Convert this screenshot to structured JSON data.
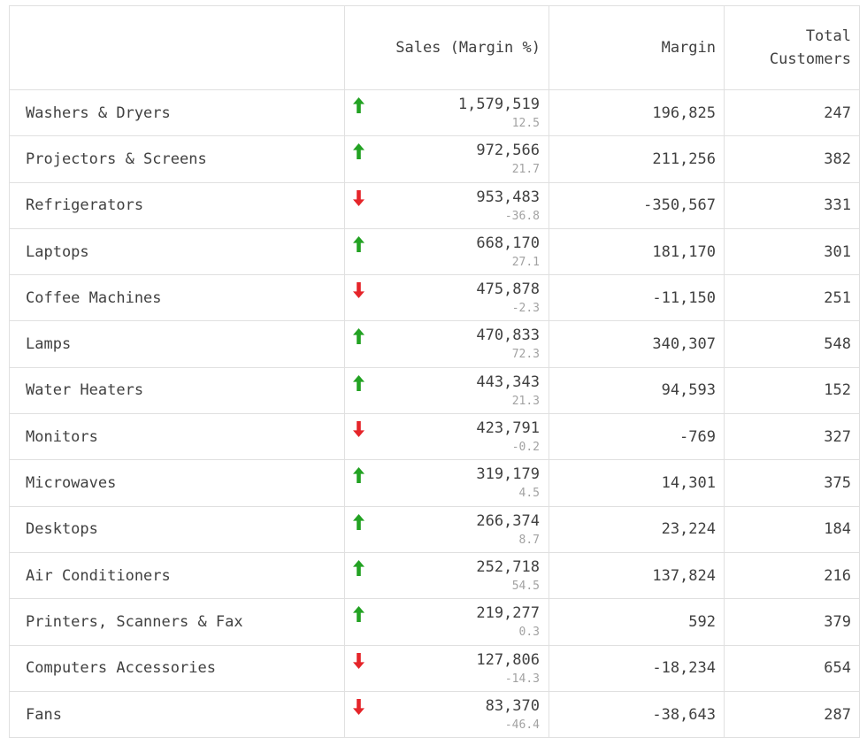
{
  "colors": {
    "trend_up": "#23a223",
    "trend_down": "#e5252a",
    "text": "#404040",
    "muted_text": "#a2a2a2",
    "border": "#e0e0e0"
  },
  "chart_data": {
    "type": "table",
    "columns": [
      "",
      "Sales (Margin %)",
      "Margin",
      "Total Customers"
    ],
    "rows": [
      {
        "category": "Washers & Dryers",
        "trend": "up",
        "sales": "1,579,519",
        "margin_pct": "12.5",
        "margin": "196,825",
        "total_customers": "247"
      },
      {
        "category": "Projectors & Screens",
        "trend": "up",
        "sales": "972,566",
        "margin_pct": "21.7",
        "margin": "211,256",
        "total_customers": "382"
      },
      {
        "category": "Refrigerators",
        "trend": "down",
        "sales": "953,483",
        "margin_pct": "-36.8",
        "margin": "-350,567",
        "total_customers": "331"
      },
      {
        "category": "Laptops",
        "trend": "up",
        "sales": "668,170",
        "margin_pct": "27.1",
        "margin": "181,170",
        "total_customers": "301"
      },
      {
        "category": "Coffee Machines",
        "trend": "down",
        "sales": "475,878",
        "margin_pct": "-2.3",
        "margin": "-11,150",
        "total_customers": "251"
      },
      {
        "category": "Lamps",
        "trend": "up",
        "sales": "470,833",
        "margin_pct": "72.3",
        "margin": "340,307",
        "total_customers": "548"
      },
      {
        "category": "Water Heaters",
        "trend": "up",
        "sales": "443,343",
        "margin_pct": "21.3",
        "margin": "94,593",
        "total_customers": "152"
      },
      {
        "category": "Monitors",
        "trend": "down",
        "sales": "423,791",
        "margin_pct": "-0.2",
        "margin": "-769",
        "total_customers": "327"
      },
      {
        "category": "Microwaves",
        "trend": "up",
        "sales": "319,179",
        "margin_pct": "4.5",
        "margin": "14,301",
        "total_customers": "375"
      },
      {
        "category": "Desktops",
        "trend": "up",
        "sales": "266,374",
        "margin_pct": "8.7",
        "margin": "23,224",
        "total_customers": "184"
      },
      {
        "category": "Air Conditioners",
        "trend": "up",
        "sales": "252,718",
        "margin_pct": "54.5",
        "margin": "137,824",
        "total_customers": "216"
      },
      {
        "category": "Printers, Scanners & Fax",
        "trend": "up",
        "sales": "219,277",
        "margin_pct": "0.3",
        "margin": "592",
        "total_customers": "379"
      },
      {
        "category": "Computers Accessories",
        "trend": "down",
        "sales": "127,806",
        "margin_pct": "-14.3",
        "margin": "-18,234",
        "total_customers": "654"
      },
      {
        "category": "Fans",
        "trend": "down",
        "sales": "83,370",
        "margin_pct": "-46.4",
        "margin": "-38,643",
        "total_customers": "287"
      }
    ]
  }
}
